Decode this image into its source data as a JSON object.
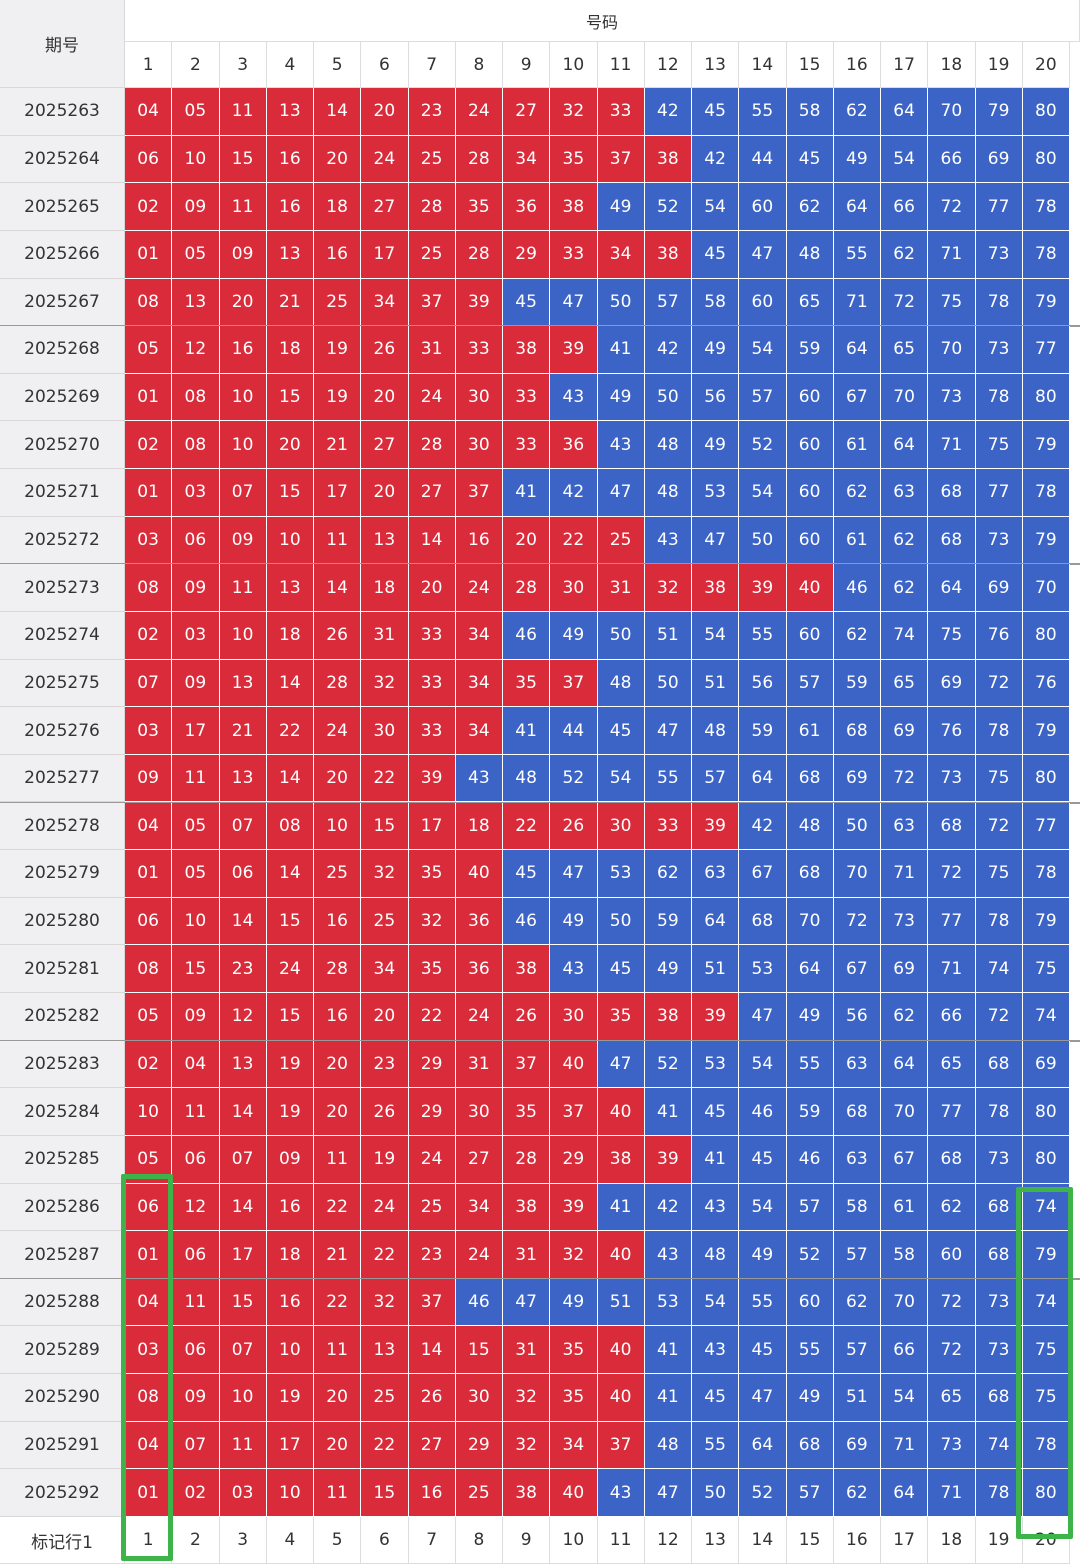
{
  "header": {
    "period_label": "期号",
    "numbers_label": "号码",
    "columns": [
      "1",
      "2",
      "3",
      "4",
      "5",
      "6",
      "7",
      "8",
      "9",
      "10",
      "11",
      "12",
      "13",
      "14",
      "15",
      "16",
      "17",
      "18",
      "19",
      "20"
    ]
  },
  "rows": [
    {
      "period": "2025263",
      "numbers": [
        "04",
        "05",
        "11",
        "13",
        "14",
        "20",
        "23",
        "24",
        "27",
        "32",
        "33",
        "42",
        "45",
        "55",
        "58",
        "62",
        "64",
        "70",
        "79",
        "80"
      ]
    },
    {
      "period": "2025264",
      "numbers": [
        "06",
        "10",
        "15",
        "16",
        "20",
        "24",
        "25",
        "28",
        "34",
        "35",
        "37",
        "38",
        "42",
        "44",
        "45",
        "49",
        "54",
        "66",
        "69",
        "80"
      ]
    },
    {
      "period": "2025265",
      "numbers": [
        "02",
        "09",
        "11",
        "16",
        "18",
        "27",
        "28",
        "35",
        "36",
        "38",
        "49",
        "52",
        "54",
        "60",
        "62",
        "64",
        "66",
        "72",
        "77",
        "78"
      ]
    },
    {
      "period": "2025266",
      "numbers": [
        "01",
        "05",
        "09",
        "13",
        "16",
        "17",
        "25",
        "28",
        "29",
        "33",
        "34",
        "38",
        "45",
        "47",
        "48",
        "55",
        "62",
        "71",
        "73",
        "78"
      ]
    },
    {
      "period": "2025267",
      "numbers": [
        "08",
        "13",
        "20",
        "21",
        "25",
        "34",
        "37",
        "39",
        "45",
        "47",
        "50",
        "57",
        "58",
        "60",
        "65",
        "71",
        "72",
        "75",
        "78",
        "79"
      ]
    },
    {
      "period": "2025268",
      "numbers": [
        "05",
        "12",
        "16",
        "18",
        "19",
        "26",
        "31",
        "33",
        "38",
        "39",
        "41",
        "42",
        "49",
        "54",
        "59",
        "64",
        "65",
        "70",
        "73",
        "77"
      ]
    },
    {
      "period": "2025269",
      "numbers": [
        "01",
        "08",
        "10",
        "15",
        "19",
        "20",
        "24",
        "30",
        "33",
        "43",
        "49",
        "50",
        "56",
        "57",
        "60",
        "67",
        "70",
        "73",
        "78",
        "80"
      ]
    },
    {
      "period": "2025270",
      "numbers": [
        "02",
        "08",
        "10",
        "20",
        "21",
        "27",
        "28",
        "30",
        "33",
        "36",
        "43",
        "48",
        "49",
        "52",
        "60",
        "61",
        "64",
        "71",
        "75",
        "79"
      ]
    },
    {
      "period": "2025271",
      "numbers": [
        "01",
        "03",
        "07",
        "15",
        "17",
        "20",
        "27",
        "37",
        "41",
        "42",
        "47",
        "48",
        "53",
        "54",
        "60",
        "62",
        "63",
        "68",
        "77",
        "78"
      ]
    },
    {
      "period": "2025272",
      "numbers": [
        "03",
        "06",
        "09",
        "10",
        "11",
        "13",
        "14",
        "16",
        "20",
        "22",
        "25",
        "43",
        "47",
        "50",
        "60",
        "61",
        "62",
        "68",
        "73",
        "79"
      ]
    },
    {
      "period": "2025273",
      "numbers": [
        "08",
        "09",
        "11",
        "13",
        "14",
        "18",
        "20",
        "24",
        "28",
        "30",
        "31",
        "32",
        "38",
        "39",
        "40",
        "46",
        "62",
        "64",
        "69",
        "70"
      ]
    },
    {
      "period": "2025274",
      "numbers": [
        "02",
        "03",
        "10",
        "18",
        "26",
        "31",
        "33",
        "34",
        "46",
        "49",
        "50",
        "51",
        "54",
        "55",
        "60",
        "62",
        "74",
        "75",
        "76",
        "80"
      ]
    },
    {
      "period": "2025275",
      "numbers": [
        "07",
        "09",
        "13",
        "14",
        "28",
        "32",
        "33",
        "34",
        "35",
        "37",
        "48",
        "50",
        "51",
        "56",
        "57",
        "59",
        "65",
        "69",
        "72",
        "76"
      ]
    },
    {
      "period": "2025276",
      "numbers": [
        "03",
        "17",
        "21",
        "22",
        "24",
        "30",
        "33",
        "34",
        "41",
        "44",
        "45",
        "47",
        "48",
        "59",
        "61",
        "68",
        "69",
        "76",
        "78",
        "79"
      ]
    },
    {
      "period": "2025277",
      "numbers": [
        "09",
        "11",
        "13",
        "14",
        "20",
        "22",
        "39",
        "43",
        "48",
        "52",
        "54",
        "55",
        "57",
        "64",
        "68",
        "69",
        "72",
        "73",
        "75",
        "80"
      ]
    },
    {
      "period": "2025278",
      "numbers": [
        "04",
        "05",
        "07",
        "08",
        "10",
        "15",
        "17",
        "18",
        "22",
        "26",
        "30",
        "33",
        "39",
        "42",
        "48",
        "50",
        "63",
        "68",
        "72",
        "77"
      ]
    },
    {
      "period": "2025279",
      "numbers": [
        "01",
        "05",
        "06",
        "14",
        "25",
        "32",
        "35",
        "40",
        "45",
        "47",
        "53",
        "62",
        "63",
        "67",
        "68",
        "70",
        "71",
        "72",
        "75",
        "78"
      ]
    },
    {
      "period": "2025280",
      "numbers": [
        "06",
        "10",
        "14",
        "15",
        "16",
        "25",
        "32",
        "36",
        "46",
        "49",
        "50",
        "59",
        "64",
        "68",
        "70",
        "72",
        "73",
        "77",
        "78",
        "79"
      ]
    },
    {
      "period": "2025281",
      "numbers": [
        "08",
        "15",
        "23",
        "24",
        "28",
        "34",
        "35",
        "36",
        "38",
        "43",
        "45",
        "49",
        "51",
        "53",
        "64",
        "67",
        "69",
        "71",
        "74",
        "75"
      ]
    },
    {
      "period": "2025282",
      "numbers": [
        "05",
        "09",
        "12",
        "15",
        "16",
        "20",
        "22",
        "24",
        "26",
        "30",
        "35",
        "38",
        "39",
        "47",
        "49",
        "56",
        "62",
        "66",
        "72",
        "74"
      ]
    },
    {
      "period": "2025283",
      "numbers": [
        "02",
        "04",
        "13",
        "19",
        "20",
        "23",
        "29",
        "31",
        "37",
        "40",
        "47",
        "52",
        "53",
        "54",
        "55",
        "63",
        "64",
        "65",
        "68",
        "69"
      ]
    },
    {
      "period": "2025284",
      "numbers": [
        "10",
        "11",
        "14",
        "19",
        "20",
        "26",
        "29",
        "30",
        "35",
        "37",
        "40",
        "41",
        "45",
        "46",
        "59",
        "68",
        "70",
        "77",
        "78",
        "80"
      ]
    },
    {
      "period": "2025285",
      "numbers": [
        "05",
        "06",
        "07",
        "09",
        "11",
        "19",
        "24",
        "27",
        "28",
        "29",
        "38",
        "39",
        "41",
        "45",
        "46",
        "63",
        "67",
        "68",
        "73",
        "80"
      ]
    },
    {
      "period": "2025286",
      "numbers": [
        "06",
        "12",
        "14",
        "16",
        "22",
        "24",
        "25",
        "34",
        "38",
        "39",
        "41",
        "42",
        "43",
        "54",
        "57",
        "58",
        "61",
        "62",
        "68",
        "74"
      ]
    },
    {
      "period": "2025287",
      "numbers": [
        "01",
        "06",
        "17",
        "18",
        "21",
        "22",
        "23",
        "24",
        "31",
        "32",
        "40",
        "43",
        "48",
        "49",
        "52",
        "57",
        "58",
        "60",
        "68",
        "79"
      ]
    },
    {
      "period": "2025288",
      "numbers": [
        "04",
        "11",
        "15",
        "16",
        "22",
        "32",
        "37",
        "46",
        "47",
        "49",
        "51",
        "53",
        "54",
        "55",
        "60",
        "62",
        "70",
        "72",
        "73",
        "74"
      ]
    },
    {
      "period": "2025289",
      "numbers": [
        "03",
        "06",
        "07",
        "10",
        "11",
        "13",
        "14",
        "15",
        "31",
        "35",
        "40",
        "41",
        "43",
        "45",
        "55",
        "57",
        "66",
        "72",
        "73",
        "75"
      ]
    },
    {
      "period": "2025290",
      "numbers": [
        "08",
        "09",
        "10",
        "19",
        "20",
        "25",
        "26",
        "30",
        "32",
        "35",
        "40",
        "41",
        "45",
        "47",
        "49",
        "51",
        "54",
        "65",
        "68",
        "75"
      ]
    },
    {
      "period": "2025291",
      "numbers": [
        "04",
        "07",
        "11",
        "17",
        "20",
        "22",
        "27",
        "29",
        "32",
        "34",
        "37",
        "48",
        "55",
        "64",
        "68",
        "69",
        "71",
        "73",
        "74",
        "78"
      ]
    },
    {
      "period": "2025292",
      "numbers": [
        "01",
        "02",
        "03",
        "10",
        "11",
        "15",
        "16",
        "25",
        "38",
        "40",
        "43",
        "47",
        "50",
        "52",
        "57",
        "62",
        "64",
        "71",
        "78",
        "80"
      ]
    }
  ],
  "footer": {
    "label": "标记行1",
    "columns": [
      "1",
      "2",
      "3",
      "4",
      "5",
      "6",
      "7",
      "8",
      "9",
      "10",
      "11",
      "12",
      "13",
      "14",
      "15",
      "16",
      "17",
      "18",
      "19",
      "20"
    ]
  }
}
